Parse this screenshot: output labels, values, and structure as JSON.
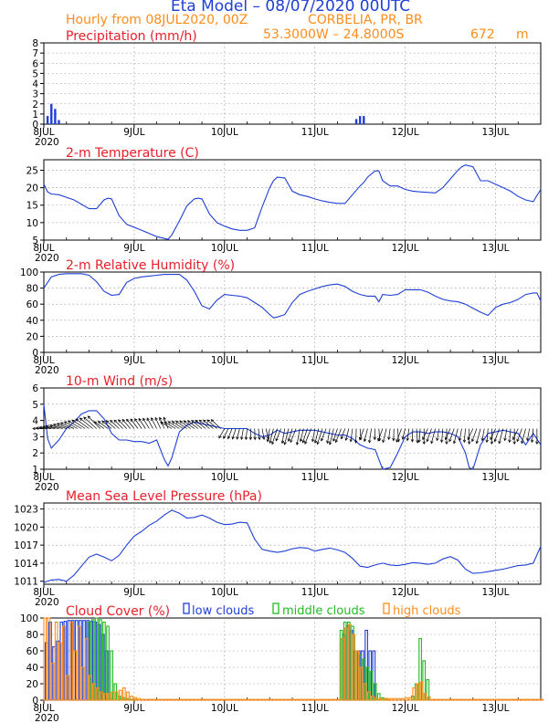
{
  "header": {
    "title": "Eta Model – 08/07/2020 00UTC",
    "subtitle": "Hourly from 08JUL2020, 00Z",
    "location": "CORBELIA, PR, BR",
    "coords": "53.3000W – 24.8000S",
    "elevation": "672",
    "elevation_unit": "m"
  },
  "colors": {
    "title": "#1f3fd6",
    "subtitle": "#ff8c1a",
    "panel_title": "#e8202a",
    "line": "#1f3fd6",
    "low": "#1f3fd6",
    "middle": "#22bb22",
    "high": "#ff8c1a",
    "arrow": "#000000"
  },
  "x_axis": {
    "tick_labels": [
      "8JUL",
      "9JUL",
      "10JUL",
      "11JUL",
      "12JUL",
      "13JUL"
    ],
    "year_label": "2020",
    "range_hours": [
      0,
      132
    ]
  },
  "cloud_legend": {
    "low": "low clouds",
    "middle": "middle clouds",
    "high": "high clouds"
  },
  "chart_data": [
    {
      "id": "precip",
      "type": "bar",
      "title": "Precipitation (mm/h)",
      "ylim": [
        0,
        8
      ],
      "yticks": [
        0,
        1,
        2,
        3,
        4,
        5,
        6,
        7,
        8
      ],
      "grid": true,
      "hours": [
        1,
        2,
        3,
        4,
        83,
        84,
        85
      ],
      "values": [
        0.8,
        2.0,
        1.5,
        0.4,
        0.5,
        0.8,
        0.8
      ]
    },
    {
      "id": "temp",
      "type": "line",
      "title": "2-m Temperature (C)",
      "ylim": [
        5,
        28
      ],
      "yticks": [
        5,
        10,
        15,
        20,
        25
      ],
      "grid": true,
      "x": [
        0,
        1,
        2,
        4,
        8,
        12,
        14,
        16,
        17,
        18,
        20,
        22,
        26,
        30,
        33,
        34,
        36,
        38,
        40,
        41,
        42,
        44,
        46,
        48,
        50,
        52,
        54,
        56,
        58,
        60,
        61,
        62,
        64,
        66,
        68,
        70,
        72,
        74,
        76,
        78,
        80,
        82,
        84,
        85,
        86,
        88,
        89,
        90,
        92,
        94,
        96,
        98,
        100,
        104,
        106,
        108,
        110,
        111,
        112,
        114,
        116,
        118,
        120,
        124,
        126,
        128,
        130,
        132
      ],
      "y": [
        21,
        18.8,
        18.2,
        18,
        16.5,
        14,
        14,
        16.5,
        17,
        16.8,
        12,
        9.5,
        7.8,
        6,
        5.2,
        6.5,
        10.5,
        14.8,
        16.8,
        17,
        16.8,
        12.5,
        10,
        9,
        8.2,
        7.8,
        7.8,
        8.5,
        14.5,
        20,
        22,
        23,
        22.8,
        19,
        18,
        17.5,
        16.8,
        16.2,
        15.8,
        15.5,
        15.5,
        18,
        20.5,
        21.5,
        23,
        24.8,
        24.8,
        22,
        20.5,
        20.5,
        19.5,
        19,
        18.8,
        18.5,
        20,
        22.5,
        25,
        26,
        26.5,
        26,
        22,
        22,
        21,
        19,
        17.5,
        16.5,
        16,
        19.5
      ]
    },
    {
      "id": "rh",
      "type": "line",
      "title": "2-m Relative Humidity (%)",
      "ylim": [
        0,
        100
      ],
      "yticks": [
        0,
        20,
        40,
        60,
        80,
        100
      ],
      "grid": true,
      "x": [
        0,
        2,
        4,
        6,
        8,
        10,
        12,
        14,
        16,
        18,
        20,
        22,
        24,
        26,
        28,
        30,
        32,
        34,
        36,
        38,
        40,
        42,
        44,
        46,
        48,
        50,
        52,
        54,
        56,
        58,
        60,
        61,
        62,
        64,
        66,
        68,
        70,
        72,
        74,
        76,
        78,
        80,
        82,
        84,
        86,
        88,
        89,
        90,
        92,
        94,
        96,
        98,
        100,
        102,
        104,
        106,
        108,
        110,
        112,
        114,
        116,
        118,
        120,
        122,
        124,
        126,
        128,
        130,
        131,
        132
      ],
      "y": [
        80,
        94,
        97,
        98,
        98,
        98,
        96,
        88,
        76,
        71,
        72,
        87,
        92,
        94,
        95,
        96,
        97,
        97,
        97,
        90,
        76,
        58,
        54,
        65,
        72,
        71,
        70,
        68,
        62,
        56,
        47,
        43,
        44,
        47,
        62,
        72,
        76,
        79,
        82,
        84,
        85,
        82,
        76,
        72,
        70,
        70,
        63,
        72,
        71,
        72,
        78,
        78,
        78,
        75,
        70,
        66,
        64,
        63,
        60,
        55,
        50,
        46,
        56,
        60,
        62,
        66,
        72,
        74,
        74,
        64
      ]
    },
    {
      "id": "wind",
      "type": "line",
      "title": "10-m Wind (m/s)",
      "ylim": [
        1,
        6
      ],
      "yticks": [
        1,
        2,
        3,
        4,
        5,
        6
      ],
      "grid": true,
      "x": [
        0,
        1,
        2,
        4,
        6,
        8,
        10,
        12,
        14,
        16,
        18,
        20,
        22,
        24,
        26,
        28,
        30,
        32,
        33,
        34,
        36,
        38,
        40,
        42,
        44,
        46,
        48,
        50,
        52,
        54,
        56,
        58,
        60,
        62,
        64,
        66,
        68,
        70,
        72,
        74,
        76,
        78,
        80,
        82,
        84,
        86,
        88,
        89,
        90,
        92,
        94,
        96,
        98,
        100,
        102,
        104,
        106,
        108,
        110,
        112,
        113,
        114,
        116,
        118,
        120,
        122,
        124,
        126,
        128,
        130,
        132
      ],
      "y": [
        5.0,
        2.9,
        2.3,
        2.8,
        3.5,
        3.9,
        4.4,
        4.6,
        4.6,
        4.1,
        3.2,
        2.8,
        2.8,
        2.7,
        2.7,
        2.6,
        2.8,
        1.6,
        1.2,
        1.7,
        3.3,
        3.7,
        3.9,
        3.8,
        3.7,
        3.6,
        3.5,
        3.5,
        3.5,
        3.5,
        3.2,
        3.0,
        3.1,
        3.4,
        3.2,
        3.3,
        3.4,
        3.4,
        3.4,
        3.3,
        3.2,
        3.1,
        3.1,
        2.9,
        2.5,
        2.3,
        2.2,
        1.6,
        1.0,
        1.1,
        2.0,
        3.0,
        3.3,
        3.3,
        3.2,
        3.3,
        3.3,
        3.2,
        3.0,
        2.0,
        1.1,
        1.0,
        2.5,
        3.2,
        3.3,
        3.4,
        3.3,
        3.2,
        2.5,
        3.2,
        2.5
      ]
    },
    {
      "id": "mslp",
      "type": "line",
      "title": "Mean Sea Level Pressure (hPa)",
      "ylim": [
        1010.5,
        1024
      ],
      "yticks": [
        1011,
        1014,
        1017,
        1020,
        1023
      ],
      "grid": true,
      "x": [
        0,
        2,
        4,
        6,
        8,
        10,
        12,
        14,
        16,
        18,
        20,
        22,
        24,
        26,
        28,
        30,
        32,
        34,
        36,
        38,
        40,
        42,
        44,
        46,
        48,
        50,
        52,
        54,
        56,
        58,
        60,
        62,
        64,
        66,
        68,
        70,
        72,
        74,
        76,
        78,
        80,
        82,
        84,
        86,
        88,
        90,
        92,
        94,
        96,
        98,
        100,
        102,
        104,
        106,
        108,
        110,
        112,
        114,
        116,
        118,
        120,
        122,
        124,
        126,
        128,
        130,
        132
      ],
      "y": [
        1010.8,
        1011.2,
        1011.3,
        1011.0,
        1012.0,
        1013.5,
        1015.0,
        1015.5,
        1015.0,
        1014.4,
        1015.3,
        1017.0,
        1018.5,
        1019.3,
        1020.3,
        1021.0,
        1022.0,
        1022.8,
        1022.3,
        1021.5,
        1021.6,
        1022.0,
        1021.5,
        1020.8,
        1020.4,
        1020.5,
        1020.8,
        1020.7,
        1018.0,
        1016.3,
        1016.0,
        1015.8,
        1016.0,
        1016.4,
        1016.6,
        1016.5,
        1016.0,
        1016.3,
        1016.5,
        1016.2,
        1015.8,
        1014.8,
        1013.5,
        1013.3,
        1013.7,
        1014.0,
        1013.7,
        1013.6,
        1013.8,
        1014.1,
        1014.0,
        1013.8,
        1014.0,
        1014.7,
        1015.1,
        1014.5,
        1013.0,
        1012.3,
        1012.4,
        1012.6,
        1012.8,
        1013.0,
        1013.3,
        1013.6,
        1013.7,
        1014.0,
        1016.8
      ]
    },
    {
      "id": "cloud",
      "type": "bar",
      "title": "Cloud Cover (%)",
      "ylim": [
        0,
        100
      ],
      "yticks": [
        0,
        20,
        40,
        60,
        80,
        100
      ],
      "grid": true,
      "series": [
        {
          "name": "low clouds",
          "hours": [
            1,
            2,
            3,
            4,
            5,
            6,
            7,
            8,
            9,
            10,
            11,
            12,
            13,
            14,
            15,
            16,
            17,
            80,
            81,
            82,
            83,
            84,
            85,
            86,
            87,
            88
          ],
          "values": [
            70,
            95,
            65,
            72,
            95,
            96,
            97,
            97,
            97,
            97,
            97,
            97,
            96,
            95,
            92,
            80,
            60,
            80,
            90,
            85,
            60,
            60,
            60,
            85,
            60,
            60
          ]
        },
        {
          "name": "middle clouds",
          "hours": [
            12,
            13,
            14,
            15,
            16,
            17,
            18,
            19,
            20,
            21,
            22,
            23,
            24,
            79,
            80,
            81,
            82,
            83,
            84,
            85,
            86,
            87,
            88,
            89,
            90,
            91,
            98,
            99,
            100,
            101,
            102
          ],
          "values": [
            95,
            98,
            100,
            98,
            95,
            90,
            60,
            20,
            5,
            3,
            2,
            1,
            1,
            85,
            95,
            95,
            90,
            60,
            55,
            50,
            40,
            35,
            20,
            8,
            3,
            2,
            5,
            20,
            75,
            48,
            25
          ]
        },
        {
          "name": "high clouds",
          "hours": [
            0,
            1,
            2,
            3,
            4,
            5,
            6,
            7,
            8,
            9,
            10,
            11,
            12,
            13,
            14,
            15,
            16,
            17,
            18,
            19,
            20,
            21,
            22,
            23,
            24,
            25,
            26,
            27,
            28,
            29,
            30,
            31,
            32,
            33,
            34,
            35,
            36,
            37,
            38,
            39,
            40,
            41,
            42,
            43,
            44,
            45,
            46,
            47,
            48,
            49,
            50,
            51,
            52,
            53,
            54,
            55,
            56,
            57,
            58,
            59,
            60,
            61,
            62,
            63,
            64,
            65,
            66,
            67,
            68,
            69,
            70,
            71,
            72,
            73,
            74,
            75,
            76,
            77,
            78,
            79,
            80,
            81,
            82,
            83,
            84,
            85,
            86,
            87,
            88,
            89,
            90,
            91,
            92,
            93,
            94,
            95,
            96,
            97,
            98,
            99,
            100,
            101,
            102,
            103,
            104,
            105,
            106,
            107,
            108,
            109,
            110,
            111,
            112,
            113,
            114,
            115,
            116,
            117,
            118,
            119,
            120,
            121,
            122,
            123,
            124,
            125,
            126,
            127,
            128,
            129,
            130,
            131,
            132
          ],
          "values": [
            100,
            100,
            45,
            95,
            70,
            90,
            30,
            95,
            60,
            90,
            40,
            75,
            30,
            20,
            15,
            10,
            8,
            8,
            10,
            10,
            12,
            15,
            10,
            5,
            3,
            2,
            1,
            1,
            1,
            1,
            1,
            1,
            1,
            1,
            1,
            1,
            1,
            1,
            1,
            1,
            1,
            1,
            1,
            1,
            1,
            1,
            1,
            1,
            1,
            1,
            1,
            1,
            1,
            1,
            1,
            1,
            1,
            1,
            1,
            1,
            1,
            1,
            1,
            1,
            1,
            1,
            1,
            1,
            1,
            1,
            1,
            1,
            1,
            1,
            1,
            1,
            1,
            1,
            1,
            75,
            88,
            92,
            80,
            60,
            40,
            20,
            10,
            5,
            3,
            2,
            2,
            2,
            2,
            2,
            2,
            2,
            3,
            3,
            15,
            20,
            22,
            8,
            4,
            1,
            1,
            1,
            1,
            1,
            1,
            1,
            1,
            1,
            1,
            1,
            1,
            1,
            1,
            1,
            1,
            1,
            1,
            1,
            1,
            1,
            1,
            1,
            1,
            1,
            1,
            1,
            1,
            1,
            1
          ]
        }
      ]
    }
  ]
}
